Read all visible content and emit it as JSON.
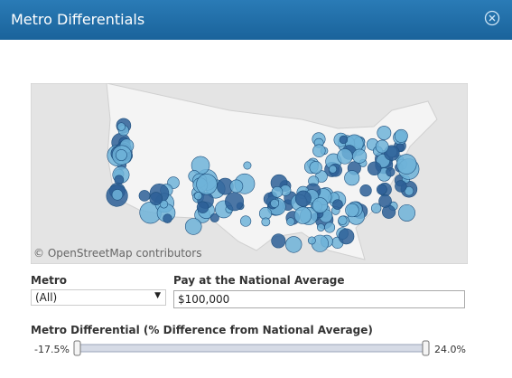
{
  "header": {
    "title": "Metro Differentials"
  },
  "map": {
    "attribution": "© OpenStreetMap contributors"
  },
  "filters": {
    "metro": {
      "label": "Metro",
      "value": "(All)"
    },
    "pay": {
      "label": "Pay at the National Average",
      "value": "$100,000"
    },
    "differential": {
      "label": "Metro Differential (% Difference from National Average)",
      "min_label": "-17.5%",
      "max_label": "24.0%"
    }
  }
}
